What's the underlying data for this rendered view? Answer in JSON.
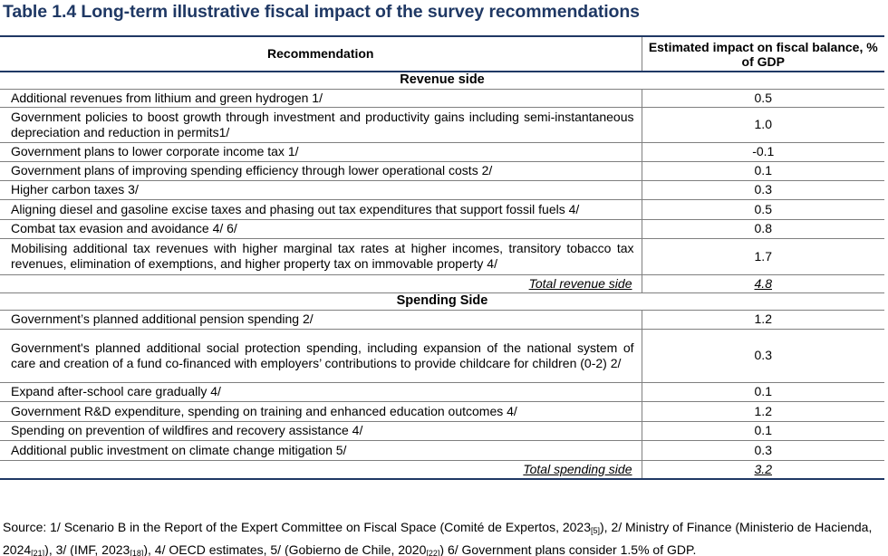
{
  "title": "Table 1.4 Long-term illustrative fiscal impact of the survey recommendations",
  "header": {
    "col1": "Recommendation",
    "col2": "Estimated impact on fiscal balance, % of GDP"
  },
  "revenue": {
    "heading": "Revenue side",
    "rows": [
      {
        "label": "Additional revenues from lithium and green hydrogen 1/",
        "value": "0.5"
      },
      {
        "label": "Government policies to boost growth through investment and productivity gains including semi-instantaneous depreciation and reduction in permits1/",
        "value": "1.0"
      },
      {
        "label": "Government plans to lower corporate income tax 1/",
        "value": "-0.1"
      },
      {
        "label": "Government plans of improving spending efficiency through lower operational costs 2/",
        "value": "0.1"
      },
      {
        "label": "Higher carbon taxes 3/",
        "value": "0.3"
      },
      {
        "label": "Aligning diesel and gasoline excise taxes and phasing out tax expenditures that support fossil fuels 4/",
        "value": "0.5"
      },
      {
        "label": "Combat tax evasion and avoidance 4/ 6/",
        "value": "0.8"
      },
      {
        "label": "Mobilising additional tax revenues with higher marginal tax rates at higher incomes, transitory tobacco tax revenues, elimination of exemptions, and higher property tax on immovable property 4/",
        "value": "1.7"
      }
    ],
    "total_label": "Total revenue side",
    "total_value": "4.8"
  },
  "spending": {
    "heading": "Spending Side",
    "rows": [
      {
        "label": "Government’s planned additional pension spending 2/",
        "value": "1.2"
      },
      {
        "label": "Government's planned additional social protection spending, including expansion of the national system of care and creation of a fund co-financed with employers’ contributions to provide childcare for children (0-2) 2/",
        "value": "0.3"
      },
      {
        "label": "Expand after-school care gradually 4/",
        "value": "0.1"
      },
      {
        "label": "Government R&D expenditure, spending on training and enhanced education outcomes 4/",
        "value": "1.2"
      },
      {
        "label": "Spending on prevention of wildfires and recovery assistance 4/",
        "value": "0.1"
      },
      {
        "label": "Additional public investment on climate change mitigation 5/",
        "value": "0.3"
      }
    ],
    "total_label": "Total spending side",
    "total_value": "3.2"
  },
  "source": {
    "p1": "Source: 1/ Scenario B in the Report of the Expert Committee on Fiscal Space (Comité de Expertos, 2023",
    "r1": "[5]",
    "p2": "), 2/ Ministry of Finance (Ministerio de Hacienda, 2024",
    "r2": "[21]",
    "p3": "), 3/ (IMF, 2023",
    "r3": "[18]",
    "p4": "), 4/ OECD estimates, 5/ (Gobierno de Chile, 2020",
    "r4": "[22]",
    "p5": ") 6/ Government plans consider 1.5% of GDP."
  }
}
